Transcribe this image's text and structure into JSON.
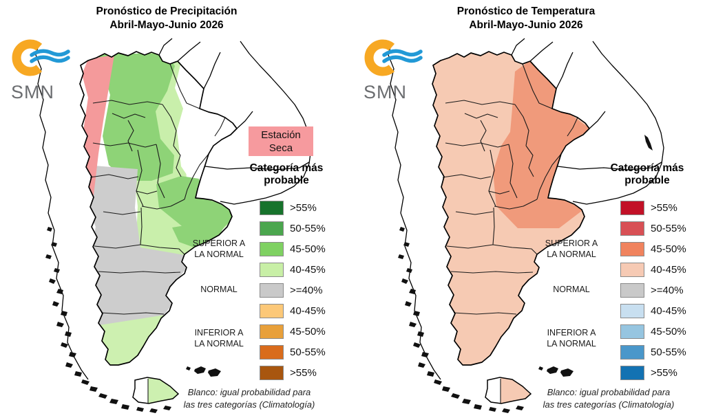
{
  "panels": [
    {
      "id": "precipitation",
      "title": {
        "line1": "Pronóstico de Precipitación",
        "line2": "Abril-Mayo-Junio 2026"
      },
      "logo": {
        "text": "SMN",
        "sun_color": "#f7a823",
        "wave_color": "#2299d6"
      },
      "dry_season_box": {
        "line1": "Estación",
        "line2": "Seca",
        "color": "#f69a9e"
      },
      "legend": {
        "heading": {
          "line1": "Categoría más",
          "line2": "probable"
        },
        "groups": [
          {
            "line1": "SUPERIOR A",
            "line2": "LA NORMAL"
          },
          {
            "line1": "NORMAL",
            "line2": ""
          },
          {
            "line1": "INFERIOR A",
            "line2": "LA NORMAL"
          }
        ],
        "items": [
          {
            "range": ">55%",
            "color": "#17732c"
          },
          {
            "range": "50-55%",
            "color": "#4ba64e"
          },
          {
            "range": "45-50%",
            "color": "#7fd162"
          },
          {
            "range": "40-45%",
            "color": "#c8efa6"
          },
          {
            "range": ">=40%",
            "color": "#c9c9c9"
          },
          {
            "range": "40-45%",
            "color": "#fcc878"
          },
          {
            "range": "45-50%",
            "color": "#e8a03a"
          },
          {
            "range": "50-55%",
            "color": "#d96c1c"
          },
          {
            "range": ">55%",
            "color": "#a8560f"
          }
        ]
      },
      "footnote": {
        "line1": "Blanco: igual probabilidad para",
        "line2": "las tres categorías (Climatología)"
      },
      "map_colors": {
        "white_equal": "#ffffff",
        "above_45_50": "#8ed377",
        "above_40_45": "#c9efab",
        "normal_gte40": "#cdcdcd",
        "south_40_45": "#cdf0b0",
        "dry_season": "#f49a9b"
      }
    },
    {
      "id": "temperature",
      "title": {
        "line1": "Pronóstico de Temperatura",
        "line2": "Abril-Mayo-Junio 2026"
      },
      "logo": {
        "text": "SMN",
        "sun_color": "#f7a823",
        "wave_color": "#2299d6"
      },
      "legend": {
        "heading": {
          "line1": "Categoría más",
          "line2": "probable"
        },
        "groups": [
          {
            "line1": "SUPERIOR A",
            "line2": "LA NORMAL"
          },
          {
            "line1": "NORMAL",
            "line2": ""
          },
          {
            "line1": "INFERIOR A",
            "line2": "LA NORMAL"
          }
        ],
        "items": [
          {
            "range": ">55%",
            "color": "#c21127"
          },
          {
            "range": "50-55%",
            "color": "#d85055"
          },
          {
            "range": "45-50%",
            "color": "#f0835e"
          },
          {
            "range": "40-45%",
            "color": "#f6cab4"
          },
          {
            "range": ">=40%",
            "color": "#c9c9c9"
          },
          {
            "range": "40-45%",
            "color": "#c8dff0"
          },
          {
            "range": "45-50%",
            "color": "#96c5e0"
          },
          {
            "range": "50-55%",
            "color": "#4a97ca"
          },
          {
            "range": ">55%",
            "color": "#1372b2"
          }
        ]
      },
      "footnote": {
        "line1": "Blanco: igual probabilidad para",
        "line2": "las tres categorías (Climatología)"
      },
      "map_colors": {
        "white_equal": "#ffffff",
        "above_40_45": "#f6cab3",
        "above_45_50": "#f09a7b"
      }
    }
  ]
}
